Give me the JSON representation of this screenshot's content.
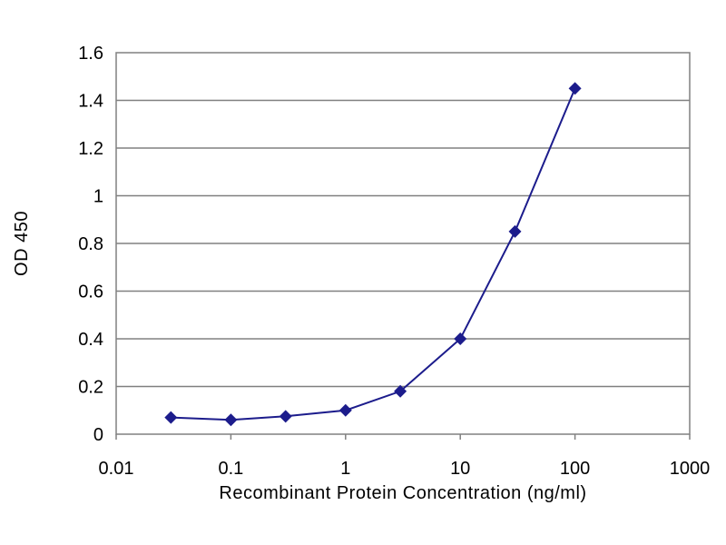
{
  "chart_data": {
    "type": "line",
    "title": "",
    "xlabel": "Recombinant Protein Concentration (ng/ml)",
    "ylabel": "OD 450",
    "x_scale": "log",
    "xlim": [
      0.01,
      1000
    ],
    "ylim": [
      0,
      1.6
    ],
    "x_ticks": [
      "0.01",
      "0.1",
      "1",
      "10",
      "100",
      "1000"
    ],
    "y_ticks": [
      "0",
      "0.2",
      "0.4",
      "0.6",
      "0.8",
      "1",
      "1.2",
      "1.4",
      "1.6"
    ],
    "grid": true,
    "legend": "none",
    "series": [
      {
        "x": [
          0.03,
          0.1,
          0.3,
          1,
          3,
          10,
          30,
          100
        ],
        "y": [
          0.07,
          0.06,
          0.075,
          0.1,
          0.18,
          0.4,
          0.85,
          1.45
        ],
        "color": "#1c1c8c"
      }
    ]
  }
}
